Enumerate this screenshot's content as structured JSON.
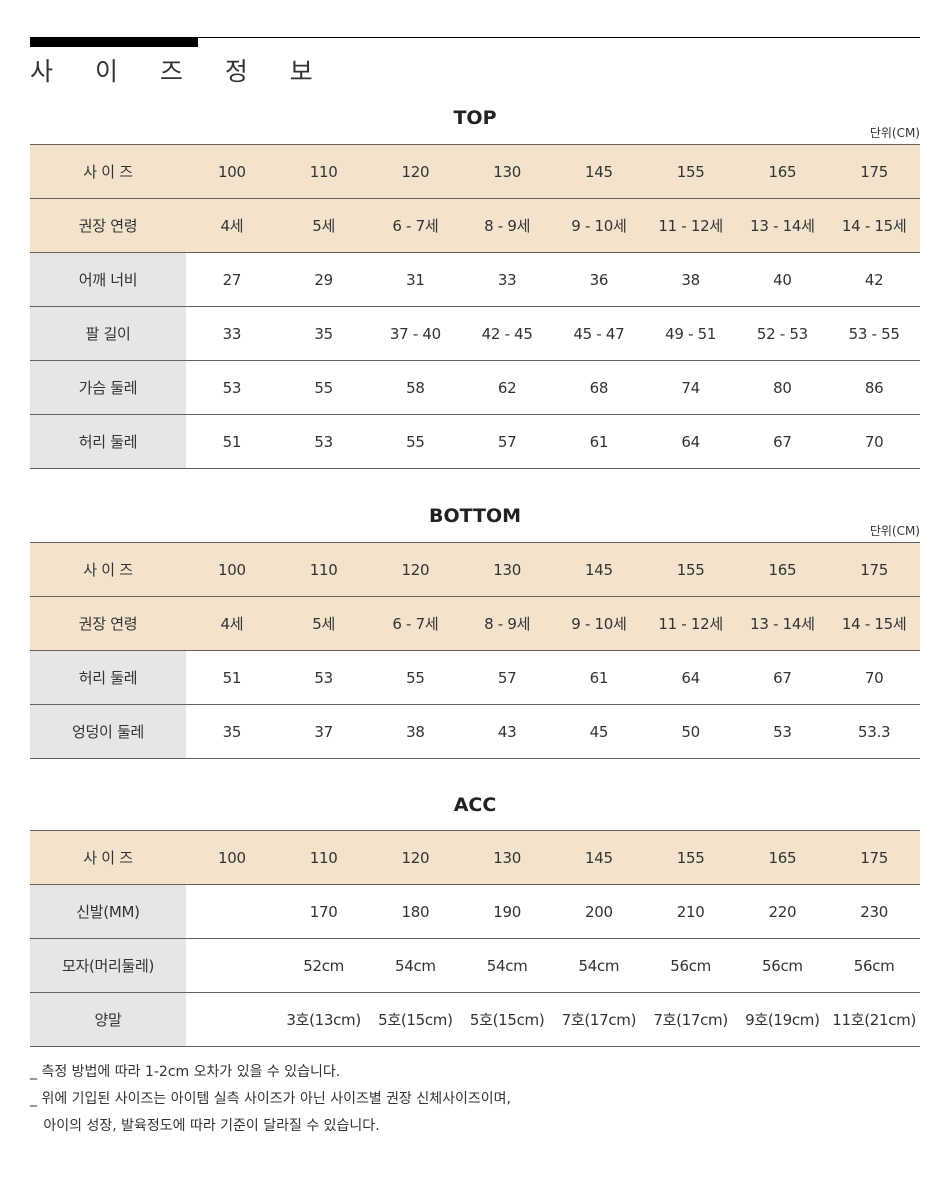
{
  "title": "사 이 즈 정 보",
  "sections": [
    {
      "title": "TOP",
      "unit": "단위(CM)",
      "header_rows": [
        [
          "사 이 즈",
          "100",
          "110",
          "120",
          "130",
          "145",
          "155",
          "165",
          "175"
        ],
        [
          "권장 연령",
          "4세",
          "5세",
          "6 - 7세",
          "8 - 9세",
          "9 - 10세",
          "11 - 12세",
          "13 - 14세",
          "14 - 15세"
        ]
      ],
      "rows": [
        [
          "어깨 너비",
          "27",
          "29",
          "31",
          "33",
          "36",
          "38",
          "40",
          "42"
        ],
        [
          "팔 길이",
          "33",
          "35",
          "37 - 40",
          "42 - 45",
          "45 - 47",
          "49 - 51",
          "52 - 53",
          "53 - 55"
        ],
        [
          "가슴 둘레",
          "53",
          "55",
          "58",
          "62",
          "68",
          "74",
          "80",
          "86"
        ],
        [
          "허리 둘레",
          "51",
          "53",
          "55",
          "57",
          "61",
          "64",
          "67",
          "70"
        ]
      ]
    },
    {
      "title": "BOTTOM",
      "unit": "단위(CM)",
      "header_rows": [
        [
          "사 이 즈",
          "100",
          "110",
          "120",
          "130",
          "145",
          "155",
          "165",
          "175"
        ],
        [
          "권장 연령",
          "4세",
          "5세",
          "6 - 7세",
          "8 - 9세",
          "9 - 10세",
          "11 - 12세",
          "13 - 14세",
          "14 - 15세"
        ]
      ],
      "rows": [
        [
          "허리 둘레",
          "51",
          "53",
          "55",
          "57",
          "61",
          "64",
          "67",
          "70"
        ],
        [
          "엉덩이 둘레",
          "35",
          "37",
          "38",
          "43",
          "45",
          "50",
          "53",
          "53.3"
        ]
      ]
    },
    {
      "title": "ACC",
      "unit": "",
      "header_rows": [
        [
          "사 이 즈",
          "100",
          "110",
          "120",
          "130",
          "145",
          "155",
          "165",
          "175"
        ]
      ],
      "rows": [
        [
          "신발(MM)",
          "",
          "170",
          "180",
          "190",
          "200",
          "210",
          "220",
          "230"
        ],
        [
          "모자(머리둘레)",
          "",
          "52cm",
          "54cm",
          "54cm",
          "54cm",
          "56cm",
          "56cm",
          "56cm"
        ],
        [
          "양말",
          "",
          "3호(13cm)",
          "5호(15cm)",
          "5호(15cm)",
          "7호(17cm)",
          "7호(17cm)",
          "9호(19cm)",
          "11호(21cm)"
        ]
      ]
    }
  ],
  "notes": [
    "_ 측정 방법에 따라 1-2cm 오차가 있을 수 있습니다.",
    "_ 위에 기입된 사이즈는 아이템  실측 사이즈가 아닌 사이즈별 권장 신체사이즈이며,",
    "   아이의 성장, 발육정도에 따라 기준이 달라질 수 있습니다."
  ],
  "colors": {
    "header_bg": "#f3e3cc",
    "label_bg": "#e6e6e6",
    "rule": "#6a5f58"
  }
}
